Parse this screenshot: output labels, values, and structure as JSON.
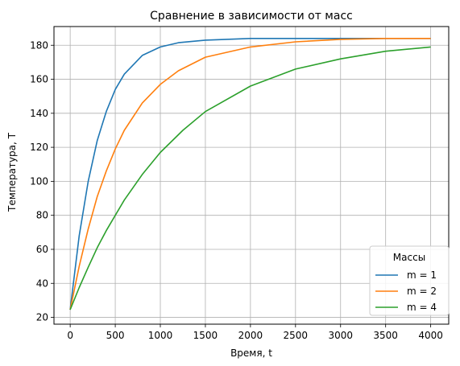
{
  "chart_data": {
    "type": "line",
    "title": "Сравнение в зависимости от масс",
    "xlabel": "Время, t",
    "ylabel": "Температура, T",
    "xlim": [
      -180,
      4200
    ],
    "ylim": [
      16,
      191
    ],
    "xticks": [
      0,
      500,
      1000,
      1500,
      2000,
      2500,
      3000,
      3500,
      4000
    ],
    "yticks": [
      20,
      40,
      60,
      80,
      100,
      120,
      140,
      160,
      180
    ],
    "grid": true,
    "legend": {
      "title": "Массы",
      "position": "lower-right"
    },
    "series": [
      {
        "name": "m = 1",
        "color": "#1f77b4",
        "x": [
          0,
          100,
          200,
          300,
          400,
          500,
          600,
          800,
          1000,
          1200,
          1500,
          2000,
          2500,
          3000,
          4000
        ],
        "y": [
          24.5,
          68,
          100,
          124,
          141,
          154,
          163,
          174,
          179,
          181.5,
          183,
          184,
          184,
          184,
          184
        ]
      },
      {
        "name": "m = 2",
        "color": "#ff7f0e",
        "x": [
          0,
          100,
          200,
          300,
          400,
          500,
          600,
          800,
          1000,
          1200,
          1500,
          2000,
          2500,
          3000,
          3500,
          4000
        ],
        "y": [
          24.5,
          50,
          72,
          91,
          106,
          119,
          130,
          146,
          157,
          165,
          173,
          179,
          182,
          183.5,
          184,
          184
        ]
      },
      {
        "name": "m = 4",
        "color": "#2ca02c",
        "x": [
          0,
          100,
          200,
          300,
          400,
          500,
          600,
          800,
          1000,
          1250,
          1500,
          2000,
          2500,
          3000,
          3500,
          4000
        ],
        "y": [
          24.5,
          37.5,
          49.5,
          61,
          71,
          80,
          89,
          104,
          117,
          130,
          141,
          156,
          166,
          172,
          176.5,
          179
        ]
      }
    ]
  }
}
